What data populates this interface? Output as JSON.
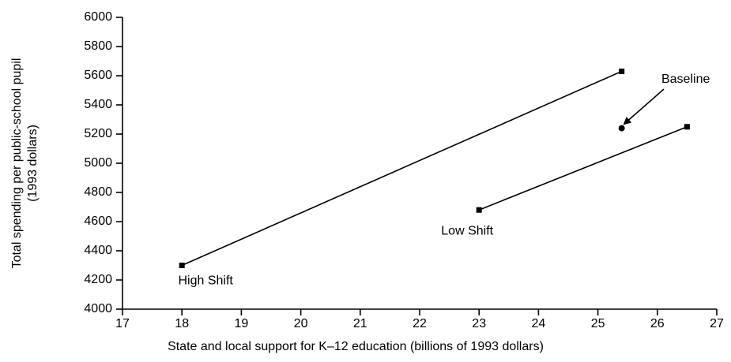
{
  "chart_data": {
    "type": "line",
    "x_label": "State and local support for K–12 education (billions of 1993 dollars)",
    "y_label": [
      "Total spending  per public-school pupil",
      "(1993 dollars)"
    ],
    "series": [
      {
        "name": "High Shift",
        "color": "#000000",
        "x": [
          18,
          25.4
        ],
        "values": [
          4300,
          5630
        ]
      },
      {
        "name": "Low Shift",
        "color": "#000000",
        "x": [
          23,
          26.5
        ],
        "values": [
          4680,
          5250
        ]
      },
      {
        "name": "Baseline",
        "color": "#000000",
        "x": [
          25.4
        ],
        "values": [
          5240
        ],
        "marker": "circle"
      }
    ],
    "xlim": [
      17,
      27
    ],
    "xticks": [
      17,
      18,
      19,
      20,
      21,
      22,
      23,
      24,
      25,
      26,
      27
    ],
    "ylim": [
      4000,
      6000
    ],
    "yticks": [
      4000,
      4200,
      4400,
      4600,
      4800,
      5000,
      5200,
      5400,
      5600,
      5800,
      6000
    ],
    "grid": false
  }
}
